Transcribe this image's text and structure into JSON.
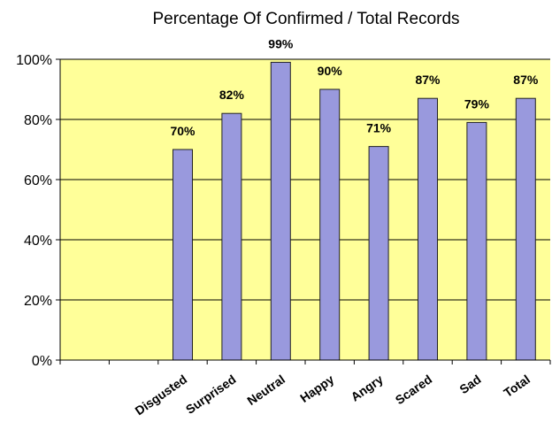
{
  "chart_data": {
    "type": "bar",
    "title": "Percentage Of Confirmed / Total Records",
    "categories": [
      "",
      "",
      "Disgusted",
      "Surprised",
      "Neutral",
      "Happy",
      "Angry",
      "Scared",
      "Sad",
      "Total"
    ],
    "values": [
      null,
      null,
      70,
      82,
      99,
      90,
      71,
      87,
      79,
      87
    ],
    "data_labels": [
      "",
      "",
      "70%",
      "82%",
      "99%",
      "90%",
      "71%",
      "87%",
      "79%",
      "87%"
    ],
    "yticks": [
      "0%",
      "20%",
      "40%",
      "60%",
      "80%",
      "100%"
    ],
    "ylim": [
      0,
      100
    ],
    "grid": true,
    "colors": {
      "plot_background": "#ffff99",
      "bar_fill": "#9999dd",
      "bar_stroke": "#222222",
      "grid": "#000000"
    }
  }
}
